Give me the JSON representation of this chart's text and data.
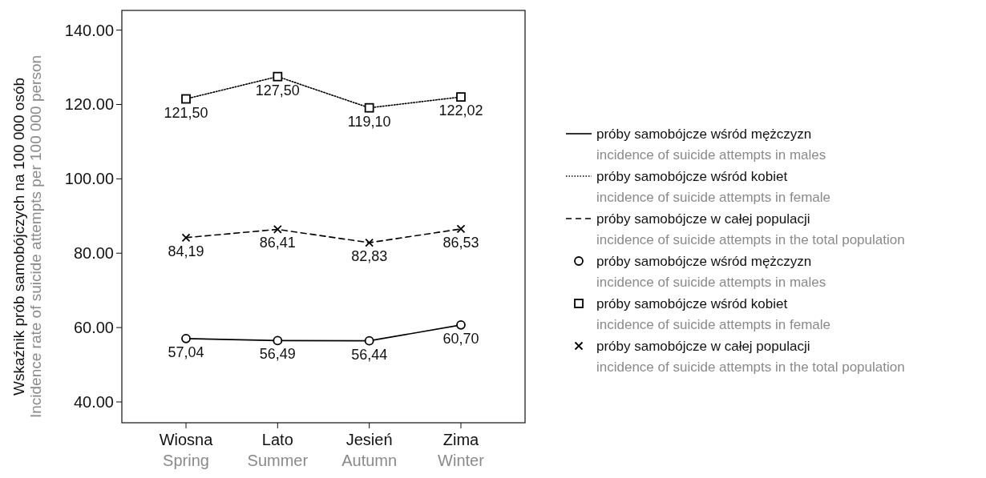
{
  "chart_data": {
    "type": "line",
    "ylabel": "Wskaźnik prób samobójczych na 100 000 osób\nIncidence rate of suicide attempts per 100 000 person",
    "categories": [
      "Wiosna\nSpring",
      "Lato\nSummer",
      "Jesień\nAutumn",
      "Zima\nWinter"
    ],
    "ylim": [
      34.4,
      145.3
    ],
    "yticks": [
      {
        "value": 40,
        "label": "40.00"
      },
      {
        "value": 60,
        "label": "60.00"
      },
      {
        "value": 80,
        "label": "80.00"
      },
      {
        "value": 100,
        "label": "100.00"
      },
      {
        "value": 120,
        "label": "120.00"
      },
      {
        "value": 140,
        "label": "140.00"
      }
    ],
    "grid": false,
    "legend": "right",
    "series": [
      {
        "name": "próby samobójcze wśród mężczyzn\nincidence of suicide attempts in males",
        "color": "#000000",
        "values": [
          57.04,
          56.49,
          56.44,
          60.7
        ],
        "value_labels": [
          "57,04",
          "56,49",
          "56,44",
          "60,70"
        ],
        "line_style": "solid",
        "marker": "circle"
      },
      {
        "name": "próby samobójcze wśród kobiet\nincidence of suicide attempts in female",
        "color": "#000000",
        "values": [
          121.5,
          127.5,
          119.1,
          122.02
        ],
        "value_labels": [
          "121,50",
          "127,50",
          "119,10",
          "122,02"
        ],
        "line_style": "dotted",
        "marker": "square"
      },
      {
        "name": "próby samobójcze w całej populacji\nincidence of suicide attempts in the total population",
        "color": "#000000",
        "values": [
          84.19,
          86.41,
          82.83,
          86.53
        ],
        "value_labels": [
          "84,19",
          "86,41",
          "82,83",
          "86,53"
        ],
        "line_style": "dashed",
        "marker": "cross"
      }
    ]
  }
}
